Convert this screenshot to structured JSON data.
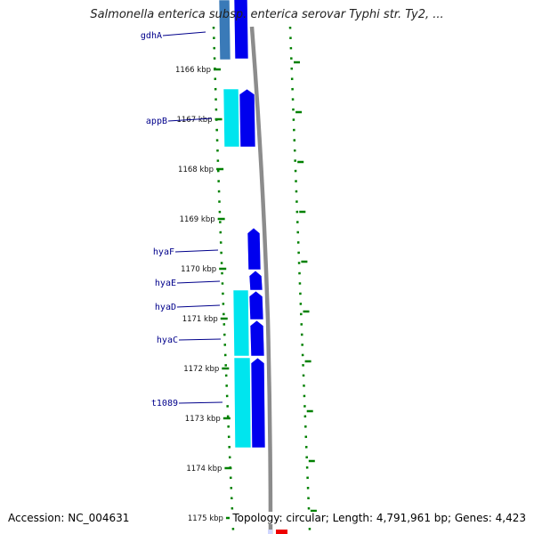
{
  "title": "Salmonella enterica subsp. enterica serovar Typhi str. Ty2, ...",
  "footer": {
    "accession": "Accession: NC_004631",
    "summary": "Topology: circular; Length: 4,791,961 bp; Genes: 4,423"
  },
  "colors": {
    "forward_gene": "#0000ee",
    "reverse_gene": "#00e5ee",
    "reverse_gene_dark": "#3a7ab8",
    "backbone": "#888888",
    "ticks": "#008000",
    "label": "#00008b",
    "highlight": "#ff0000"
  },
  "scale": {
    "ticks": [
      {
        "kbp": 1166,
        "label": "1166 kbp"
      },
      {
        "kbp": 1167,
        "label": "1167 kbp"
      },
      {
        "kbp": 1168,
        "label": "1168 kbp"
      },
      {
        "kbp": 1169,
        "label": "1169 kbp"
      },
      {
        "kbp": 1170,
        "label": "1170 kbp"
      },
      {
        "kbp": 1171,
        "label": "1171 kbp"
      },
      {
        "kbp": 1172,
        "label": "1172 kbp"
      },
      {
        "kbp": 1173,
        "label": "1173 kbp"
      },
      {
        "kbp": 1174,
        "label": "1174 kbp"
      },
      {
        "kbp": 1175,
        "label": "1175 kbp"
      }
    ]
  },
  "gene_labels": [
    {
      "name": "gdhA",
      "kbp": 1165.35
    },
    {
      "name": "appB",
      "kbp": 1167.05
    },
    {
      "name": "hyaF",
      "kbp": 1169.85
    },
    {
      "name": "hyaE",
      "kbp": 1170.5
    },
    {
      "name": "hyaD",
      "kbp": 1170.96
    },
    {
      "name": "hyaC",
      "kbp": 1171.45
    },
    {
      "name": "t1089",
      "kbp": 1172.7
    }
  ]
}
